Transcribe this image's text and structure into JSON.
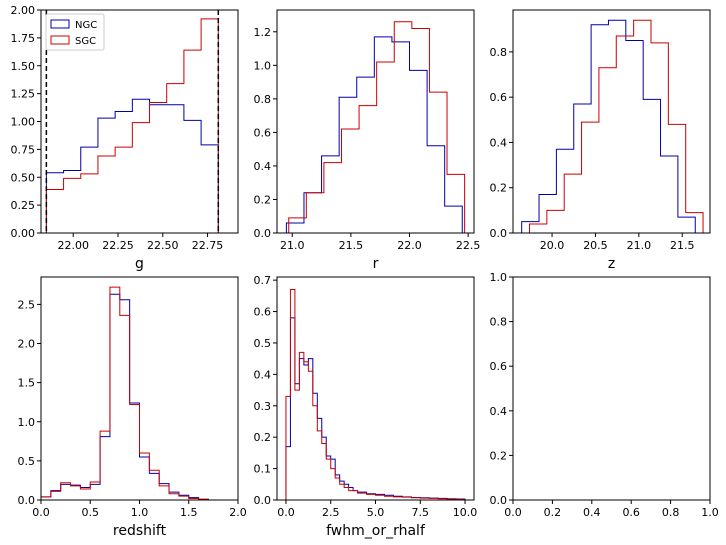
{
  "colors": {
    "NGC": "#0000aa",
    "SGC": "#cc0000",
    "vline": "#000000"
  },
  "chart_data": [
    {
      "type": "histogram-step",
      "xlabel": "g",
      "xlim": [
        21.82,
        22.92
      ],
      "ylim": [
        0,
        2.0
      ],
      "xticks": [
        22.0,
        22.25,
        22.5,
        22.75
      ],
      "xtick_labels": [
        "22.00",
        "22.25",
        "22.50",
        "22.75"
      ],
      "yticks": [
        0,
        0.25,
        0.5,
        0.75,
        1.0,
        1.25,
        1.5,
        1.75,
        2.0
      ],
      "ytick_labels": [
        "0.00",
        "0.25",
        "0.50",
        "0.75",
        "1.00",
        "1.25",
        "1.50",
        "1.75",
        "2.00"
      ],
      "legend": {
        "position": "top-left",
        "entries": [
          "NGC",
          "SGC"
        ]
      },
      "vlines": [
        21.85,
        22.81
      ],
      "series": [
        {
          "name": "NGC",
          "edges": [
            21.85,
            21.946,
            22.042,
            22.138,
            22.234,
            22.33,
            22.426,
            22.522,
            22.618,
            22.714,
            22.81,
            22.89
          ],
          "values": [
            0.54,
            0.56,
            0.77,
            1.03,
            1.09,
            1.2,
            1.15,
            1.15,
            1.01,
            0.79,
            0
          ]
        },
        {
          "name": "SGC",
          "edges": [
            21.85,
            21.946,
            22.042,
            22.138,
            22.234,
            22.33,
            22.426,
            22.522,
            22.618,
            22.714,
            22.81
          ],
          "values": [
            0.39,
            0.49,
            0.53,
            0.69,
            0.77,
            0.99,
            1.17,
            1.34,
            1.64,
            1.92
          ]
        }
      ]
    },
    {
      "type": "histogram-step",
      "xlabel": "r",
      "xlim": [
        20.87,
        22.55
      ],
      "ylim": [
        0,
        1.33
      ],
      "xticks": [
        21.0,
        21.5,
        22.0,
        22.5
      ],
      "xtick_labels": [
        "21.0",
        "21.5",
        "22.0",
        "22.5"
      ],
      "yticks": [
        0,
        0.2,
        0.4,
        0.6,
        0.8,
        1.0,
        1.2
      ],
      "ytick_labels": [
        "0.0",
        "0.2",
        "0.4",
        "0.6",
        "0.8",
        "1.0",
        "1.2"
      ],
      "series": [
        {
          "name": "NGC",
          "edges": [
            20.95,
            21.1,
            21.25,
            21.4,
            21.55,
            21.7,
            21.85,
            22.0,
            22.15,
            22.3,
            22.45
          ],
          "values": [
            0.06,
            0.24,
            0.46,
            0.81,
            0.93,
            1.17,
            1.14,
            0.97,
            0.52,
            0.16
          ]
        },
        {
          "name": "SGC",
          "edges": [
            20.97,
            21.12,
            21.27,
            21.42,
            21.57,
            21.72,
            21.87,
            22.02,
            22.17,
            22.32,
            22.47
          ],
          "values": [
            0.09,
            0.24,
            0.42,
            0.62,
            0.76,
            1.02,
            1.26,
            1.22,
            0.84,
            0.35
          ]
        }
      ]
    },
    {
      "type": "histogram-step",
      "xlabel": "z",
      "xlim": [
        19.55,
        21.82
      ],
      "ylim": [
        0,
        0.985
      ],
      "xticks": [
        20.0,
        20.5,
        21.0,
        21.5
      ],
      "xtick_labels": [
        "20.0",
        "20.5",
        "21.0",
        "21.5"
      ],
      "yticks": [
        0,
        0.2,
        0.4,
        0.6,
        0.8
      ],
      "ytick_labels": [
        "0.0",
        "0.2",
        "0.4",
        "0.6",
        "0.8"
      ],
      "series": [
        {
          "name": "NGC",
          "edges": [
            19.65,
            19.85,
            20.05,
            20.25,
            20.45,
            20.65,
            20.85,
            21.05,
            21.25,
            21.45,
            21.65
          ],
          "values": [
            0.05,
            0.17,
            0.37,
            0.57,
            0.92,
            0.94,
            0.85,
            0.59,
            0.34,
            0.07
          ]
        },
        {
          "name": "SGC",
          "edges": [
            19.74,
            19.94,
            20.14,
            20.34,
            20.54,
            20.74,
            20.94,
            21.14,
            21.34,
            21.54,
            21.74
          ],
          "values": [
            0.04,
            0.1,
            0.26,
            0.49,
            0.73,
            0.87,
            0.94,
            0.84,
            0.48,
            0.09
          ]
        }
      ]
    },
    {
      "type": "histogram-step",
      "xlabel": "redshift",
      "xlim": [
        0,
        2.0
      ],
      "ylim": [
        0,
        2.85
      ],
      "xticks": [
        0,
        0.5,
        1.0,
        1.5,
        2.0
      ],
      "xtick_labels": [
        "0.0",
        "0.5",
        "1.0",
        "1.5",
        "2.0"
      ],
      "yticks": [
        0,
        0.5,
        1.0,
        1.5,
        2.0,
        2.5
      ],
      "ytick_labels": [
        "0.0",
        "0.5",
        "1.0",
        "1.5",
        "2.0",
        "2.5"
      ],
      "series": [
        {
          "name": "NGC",
          "edges": [
            0,
            0.1,
            0.2,
            0.3,
            0.4,
            0.5,
            0.6,
            0.7,
            0.8,
            0.9,
            1.0,
            1.1,
            1.2,
            1.3,
            1.4,
            1.5,
            1.6,
            1.7
          ],
          "values": [
            0.04,
            0.12,
            0.2,
            0.19,
            0.16,
            0.2,
            0.81,
            2.63,
            2.56,
            1.24,
            0.55,
            0.34,
            0.21,
            0.1,
            0.06,
            0.03,
            0.01
          ]
        },
        {
          "name": "SGC",
          "edges": [
            0,
            0.1,
            0.2,
            0.3,
            0.4,
            0.5,
            0.6,
            0.7,
            0.8,
            0.9,
            1.0,
            1.1,
            1.2,
            1.3,
            1.4,
            1.5,
            1.6,
            1.7
          ],
          "values": [
            0.04,
            0.11,
            0.22,
            0.18,
            0.14,
            0.23,
            0.88,
            2.72,
            2.36,
            1.22,
            0.6,
            0.38,
            0.18,
            0.08,
            0.05,
            0.02,
            0.01
          ]
        }
      ]
    },
    {
      "type": "histogram-step",
      "xlabel": "fwhm_or_rhalf",
      "xlim": [
        -0.5,
        10.5
      ],
      "ylim": [
        0,
        0.71
      ],
      "xticks": [
        0,
        2.5,
        5.0,
        7.5,
        10.0
      ],
      "xtick_labels": [
        "0.0",
        "2.5",
        "5.0",
        "7.5",
        "10.0"
      ],
      "yticks": [
        0,
        0.1,
        0.2,
        0.3,
        0.4,
        0.5,
        0.6,
        0.7
      ],
      "ytick_labels": [
        "0.0",
        "0.1",
        "0.2",
        "0.3",
        "0.4",
        "0.5",
        "0.6",
        "0.7"
      ],
      "series": [
        {
          "name": "NGC",
          "edges": [
            0,
            0.25,
            0.5,
            0.75,
            1.0,
            1.25,
            1.5,
            1.75,
            2.0,
            2.25,
            2.5,
            2.75,
            3.0,
            3.25,
            3.5,
            3.75,
            4.0,
            4.5,
            5.0,
            5.5,
            6.0,
            6.5,
            7.0,
            7.5,
            8.0,
            8.5,
            9.0,
            9.5,
            10.0
          ],
          "values": [
            0.17,
            0.58,
            0.37,
            0.45,
            0.43,
            0.45,
            0.34,
            0.26,
            0.2,
            0.14,
            0.13,
            0.08,
            0.06,
            0.05,
            0.04,
            0.03,
            0.025,
            0.02,
            0.018,
            0.015,
            0.012,
            0.01,
            0.008,
            0.007,
            0.006,
            0.005,
            0.004,
            0.003
          ]
        },
        {
          "name": "SGC",
          "edges": [
            0,
            0.25,
            0.5,
            0.75,
            1.0,
            1.25,
            1.5,
            1.75,
            2.0,
            2.25,
            2.5,
            2.75,
            3.0,
            3.25,
            3.5,
            3.75,
            4.0,
            4.5,
            5.0,
            5.5,
            6.0,
            6.5,
            7.0,
            7.5,
            8.0,
            8.5,
            9.0,
            9.5,
            10.0
          ],
          "values": [
            0.33,
            0.67,
            0.35,
            0.47,
            0.44,
            0.41,
            0.3,
            0.22,
            0.18,
            0.13,
            0.1,
            0.07,
            0.05,
            0.04,
            0.03,
            0.03,
            0.022,
            0.018,
            0.015,
            0.012,
            0.01,
            0.009,
            0.007,
            0.006,
            0.005,
            0.004,
            0.003,
            0.002
          ]
        }
      ]
    },
    {
      "type": "empty",
      "xlim": [
        0,
        1.0
      ],
      "ylim": [
        0,
        1.0
      ],
      "xticks": [
        0,
        0.2,
        0.4,
        0.6,
        0.8,
        1.0
      ],
      "xtick_labels": [
        "0.0",
        "0.2",
        "0.4",
        "0.6",
        "0.8",
        "1.0"
      ],
      "yticks": [
        0,
        0.2,
        0.4,
        0.6,
        0.8,
        1.0
      ],
      "ytick_labels": [
        "0.0",
        "0.2",
        "0.4",
        "0.6",
        "0.8",
        "1.0"
      ],
      "series": []
    }
  ]
}
